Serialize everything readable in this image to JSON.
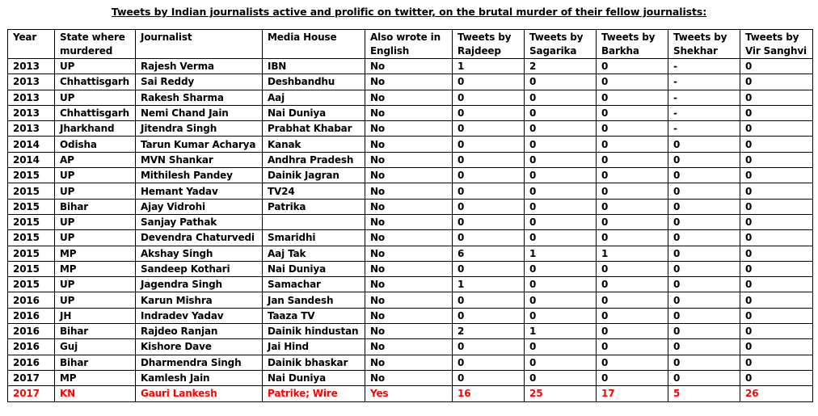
{
  "title": "Tweets by Indian journalists active and prolific on twitter, on the brutal murder of their fellow journalists:",
  "columns": [
    "Year",
    "State where murdered",
    "Journalist",
    "Media House",
    "Also wrote in English",
    "Tweets by Rajdeep",
    "Tweets by Sagarika",
    "Tweets by Barkha",
    "Tweets by Shekhar",
    "Tweets by Vir Sanghvi"
  ],
  "rows": [
    [
      "2013",
      "UP",
      "Rajesh Verma",
      "IBN",
      "No",
      "1",
      "2",
      "0",
      "-",
      "0"
    ],
    [
      "2013",
      "Chhattisgarh",
      "Sai Reddy",
      "Deshbandhu",
      "No",
      "0",
      "0",
      "0",
      "-",
      "0"
    ],
    [
      "2013",
      "UP",
      "Rakesh Sharma",
      "Aaj",
      "No",
      "0",
      "0",
      "0",
      "-",
      "0"
    ],
    [
      "2013",
      "Chhattisgarh",
      "Nemi Chand Jain",
      "Nai Duniya",
      "No",
      "0",
      "0",
      "0",
      "-",
      "0"
    ],
    [
      "2013",
      "Jharkhand",
      "Jitendra Singh",
      "Prabhat Khabar",
      "No",
      "0",
      "0",
      "0",
      "-",
      "0"
    ],
    [
      "2014",
      "Odisha",
      "Tarun Kumar Acharya",
      "Kanak",
      "No",
      "0",
      "0",
      "0",
      "0",
      "0"
    ],
    [
      "2014",
      "AP",
      "MVN Shankar",
      "Andhra Pradesh",
      "No",
      "0",
      "0",
      "0",
      "0",
      "0"
    ],
    [
      "2015",
      "UP",
      "Mithilesh Pandey",
      "Dainik Jagran",
      "No",
      "0",
      "0",
      "0",
      "0",
      "0"
    ],
    [
      "2015",
      "UP",
      "Hemant Yadav",
      "TV24",
      "No",
      "0",
      "0",
      "0",
      "0",
      "0"
    ],
    [
      "2015",
      "Bihar",
      "Ajay Vidrohi",
      "Patrika",
      "No",
      "0",
      "0",
      "0",
      "0",
      "0"
    ],
    [
      "2015",
      "UP",
      "Sanjay Pathak",
      "",
      "No",
      "0",
      "0",
      "0",
      "0",
      "0"
    ],
    [
      "2015",
      "UP",
      "Devendra Chaturvedi",
      "Smaridhi",
      "No",
      "0",
      "0",
      "0",
      "0",
      "0"
    ],
    [
      "2015",
      "MP",
      "Akshay Singh",
      "Aaj Tak",
      "No",
      "6",
      "1",
      "1",
      "0",
      "0"
    ],
    [
      "2015",
      "MP",
      "Sandeep Kothari",
      "Nai Duniya",
      "No",
      "0",
      "0",
      "0",
      "0",
      "0"
    ],
    [
      "2015",
      "UP",
      "Jagendra Singh",
      "Samachar",
      "No",
      "1",
      "0",
      "0",
      "0",
      "0"
    ],
    [
      "2016",
      "UP",
      "Karun Mishra",
      "Jan Sandesh",
      "No",
      "0",
      "0",
      "0",
      "0",
      "0"
    ],
    [
      "2016",
      "JH",
      "Indradev Yadav",
      "Taaza TV",
      "No",
      "0",
      "0",
      "0",
      "0",
      "0"
    ],
    [
      "2016",
      "Bihar",
      "Rajdeo Ranjan",
      "Dainik hindustan",
      "No",
      "2",
      "1",
      "0",
      "0",
      "0"
    ],
    [
      "2016",
      "Guj",
      "Kishore Dave",
      "Jai Hind",
      "No",
      "0",
      "0",
      "0",
      "0",
      "0"
    ],
    [
      "2016",
      "Bihar",
      "Dharmendra Singh",
      "Dainik bhaskar",
      "No",
      "0",
      "0",
      "0",
      "0",
      "0"
    ],
    [
      "2017",
      "MP",
      "Kamlesh Jain",
      "Nai Duniya",
      "No",
      "0",
      "0",
      "0",
      "0",
      "0"
    ],
    [
      "2017",
      "KN",
      "Gauri Lankesh",
      "Patrike; Wire",
      "Yes",
      "16",
      "25",
      "17",
      "5",
      "26"
    ]
  ],
  "highlight_row": 21,
  "colors": {
    "highlight": "#ff0000",
    "text": "#000000",
    "border": "#000000",
    "background": "#ffffff"
  }
}
